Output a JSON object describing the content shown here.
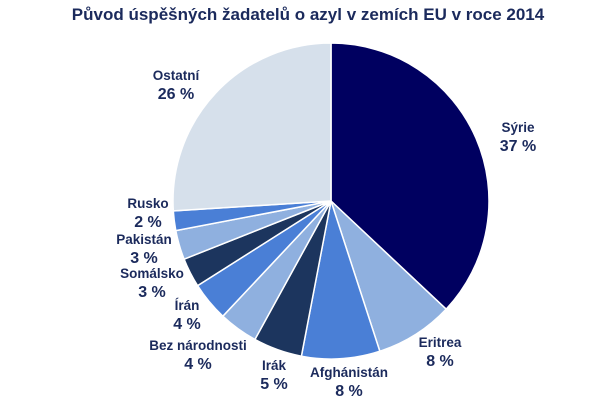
{
  "chart_data": {
    "type": "pie",
    "title": "Původ úspěšných žadatelů o azyl v zemích EU v roce 2014",
    "slices": [
      {
        "label": "Sýrie",
        "value": 37,
        "value_text": "37 %",
        "color": "#000060"
      },
      {
        "label": "Eritrea",
        "value": 8,
        "value_text": "8 %",
        "color": "#8fb0df"
      },
      {
        "label": "Afghánistán",
        "value": 8,
        "value_text": "8 %",
        "color": "#4a7fd6"
      },
      {
        "label": "Irák",
        "value": 5,
        "value_text": "5 %",
        "color": "#1c355e"
      },
      {
        "label": "Bez národnosti",
        "value": 4,
        "value_text": "4 %",
        "color": "#8fb0df"
      },
      {
        "label": "Írán",
        "value": 4,
        "value_text": "4 %",
        "color": "#4a7fd6"
      },
      {
        "label": "Somálsko",
        "value": 3,
        "value_text": "3 %",
        "color": "#1c355e"
      },
      {
        "label": "Pakistán",
        "value": 3,
        "value_text": "3 %",
        "color": "#8fb0df"
      },
      {
        "label": "Rusko",
        "value": 2,
        "value_text": "2 %",
        "color": "#4a7fd6"
      },
      {
        "label": "Ostatní",
        "value": 26,
        "value_text": "26 %",
        "color": "#d6e0eb"
      }
    ]
  }
}
